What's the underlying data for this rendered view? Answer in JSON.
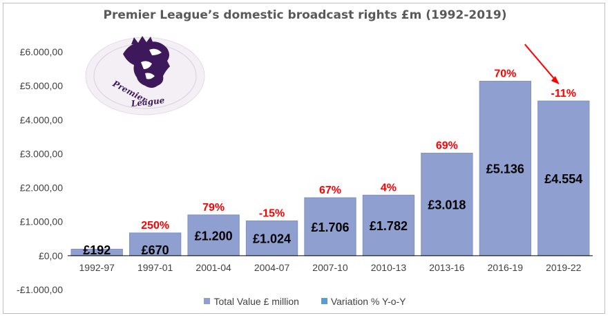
{
  "chart_data": {
    "type": "bar",
    "title": "Premier League’s domestic broadcast rights £m (1992-2019)",
    "categories": [
      "1992-97",
      "1997-01",
      "2001-04",
      "2004-07",
      "2007-10",
      "2010-13",
      "2013-16",
      "2016-19",
      "2019-22"
    ],
    "series": [
      {
        "name": "Total Value  £ million",
        "values": [
          192,
          670,
          1200,
          1024,
          1706,
          1782,
          3018,
          5136,
          4554
        ],
        "data_labels": [
          "£192",
          "£670",
          "£1.200",
          "£1.024",
          "£1.706",
          "£1.782",
          "£3.018",
          "£5.136",
          "£4.554"
        ],
        "color": "#8e9fd0"
      },
      {
        "name": "Variation % Y-o-Y",
        "values": [
          null,
          250,
          79,
          -15,
          67,
          4,
          69,
          70,
          -11
        ],
        "data_labels": [
          "",
          "250%",
          "79%",
          "-15%",
          "67%",
          "4%",
          "69%",
          "70%",
          "-11%"
        ],
        "color": "#5b9bd5",
        "label_color": "#ff0000"
      }
    ],
    "ylim": [
      -1000,
      6000
    ],
    "yticks": [
      -1000,
      0,
      1000,
      2000,
      3000,
      4000,
      5000,
      6000
    ],
    "ytick_labels": [
      "-£1.000,00",
      "£0,00",
      "£1.000,00",
      "£2.000,00",
      "£3.000,00",
      "£4.000,00",
      "£5.000,00",
      "£6.000,00"
    ],
    "xlabel": "",
    "ylabel": "",
    "grid": false,
    "legend_position": "bottom",
    "annotations": [
      {
        "type": "arrow",
        "color": "#ff0000",
        "points_to": "2019-22"
      }
    ]
  },
  "logo": {
    "text": "Premier League",
    "ring_color": "#ede7f0",
    "brand_color": "#3d195b"
  }
}
